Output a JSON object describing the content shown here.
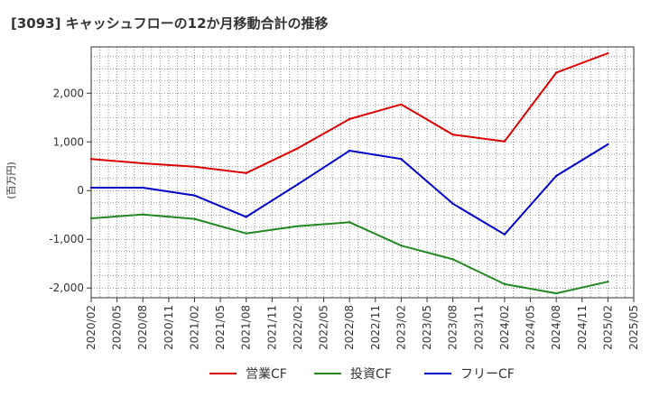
{
  "chart_data": {
    "type": "line",
    "title": "[3093]  キャッシュフローの12か月移動合計の推移",
    "ylabel": "(百万円)",
    "xlabel": "",
    "ylim": [
      -2200,
      2950
    ],
    "yticks": [
      -2000,
      -1000,
      0,
      1000,
      2000
    ],
    "ytick_labels": [
      "-2,000",
      "-1,000",
      "0",
      "1,000",
      "2,000"
    ],
    "x_ticks": [
      "2020/02",
      "2020/05",
      "2020/08",
      "2020/11",
      "2021/02",
      "2021/05",
      "2021/08",
      "2021/11",
      "2022/02",
      "2022/05",
      "2022/08",
      "2022/11",
      "2023/02",
      "2023/05",
      "2023/08",
      "2023/11",
      "2024/02",
      "2024/05",
      "2024/08",
      "2024/11",
      "2025/02",
      "2025/05"
    ],
    "grid": true,
    "legend_position": "bottom",
    "series": [
      {
        "name": "営業CF",
        "color": "#dd0000",
        "x": [
          "2020/02",
          "2020/08",
          "2021/02",
          "2021/08",
          "2022/02",
          "2022/08",
          "2023/02",
          "2023/08",
          "2024/02",
          "2024/08",
          "2025/02"
        ],
        "values": [
          650,
          560,
          490,
          360,
          870,
          1470,
          1770,
          1150,
          1010,
          2420,
          2820
        ]
      },
      {
        "name": "投資CF",
        "color": "#228822",
        "x": [
          "2020/02",
          "2020/08",
          "2021/02",
          "2021/08",
          "2022/02",
          "2022/08",
          "2023/02",
          "2023/08",
          "2024/02",
          "2024/08",
          "2025/02"
        ],
        "values": [
          -570,
          -490,
          -580,
          -880,
          -730,
          -650,
          -1130,
          -1410,
          -1920,
          -2110,
          -1870
        ]
      },
      {
        "name": "フリーCF",
        "color": "#0000cc",
        "x": [
          "2020/02",
          "2020/08",
          "2021/02",
          "2021/08",
          "2022/02",
          "2022/08",
          "2023/02",
          "2023/08",
          "2024/02",
          "2024/08",
          "2025/02"
        ],
        "values": [
          60,
          60,
          -100,
          -540,
          130,
          820,
          650,
          -270,
          -900,
          300,
          950
        ]
      }
    ]
  }
}
